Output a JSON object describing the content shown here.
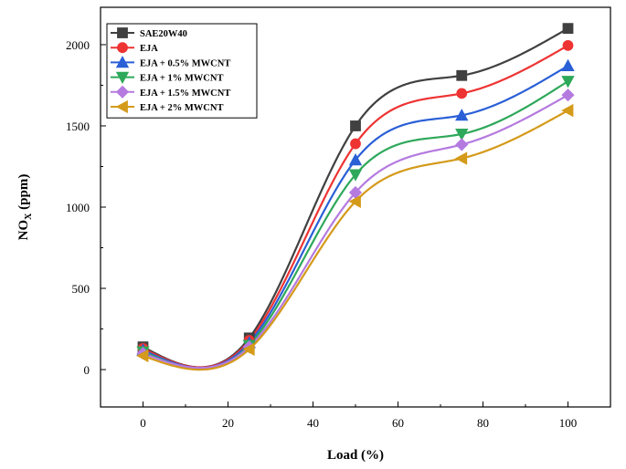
{
  "chart_data": {
    "type": "line",
    "xlabel": "Load (%)",
    "ylabel_main": "NO",
    "ylabel_sub": "X",
    "ylabel_unit": " (ppm)",
    "xlim": [
      -10,
      110
    ],
    "ylim": [
      -230,
      2230
    ],
    "xticks": [
      0,
      20,
      40,
      60,
      80,
      100
    ],
    "yticks": [
      0,
      500,
      1000,
      1500,
      2000
    ],
    "x": [
      0,
      25,
      50,
      75,
      100
    ],
    "legend_position": "top-left",
    "smooth": true,
    "series": [
      {
        "name": "SAE20W40",
        "color": "#404040",
        "marker": "square",
        "values": [
          140,
          195,
          1500,
          1810,
          2100
        ]
      },
      {
        "name": "EJA",
        "color": "#ee3333",
        "marker": "circle",
        "values": [
          130,
          180,
          1390,
          1700,
          1995
        ]
      },
      {
        "name": "EJA + 0.5% MWCNT",
        "color": "#2a5fd6",
        "marker": "triangle-up",
        "values": [
          120,
          165,
          1290,
          1565,
          1870
        ]
      },
      {
        "name": "EJA + 1% MWCNT",
        "color": "#2ea85a",
        "marker": "triangle-down",
        "values": [
          110,
          150,
          1200,
          1450,
          1775
        ]
      },
      {
        "name": "EJA + 1.5% MWCNT",
        "color": "#b57ae0",
        "marker": "diamond",
        "values": [
          100,
          140,
          1090,
          1385,
          1690
        ]
      },
      {
        "name": "EJA + 2% MWCNT",
        "color": "#d49a1a",
        "marker": "triangle-left",
        "values": [
          85,
          125,
          1035,
          1300,
          1595
        ]
      }
    ]
  }
}
